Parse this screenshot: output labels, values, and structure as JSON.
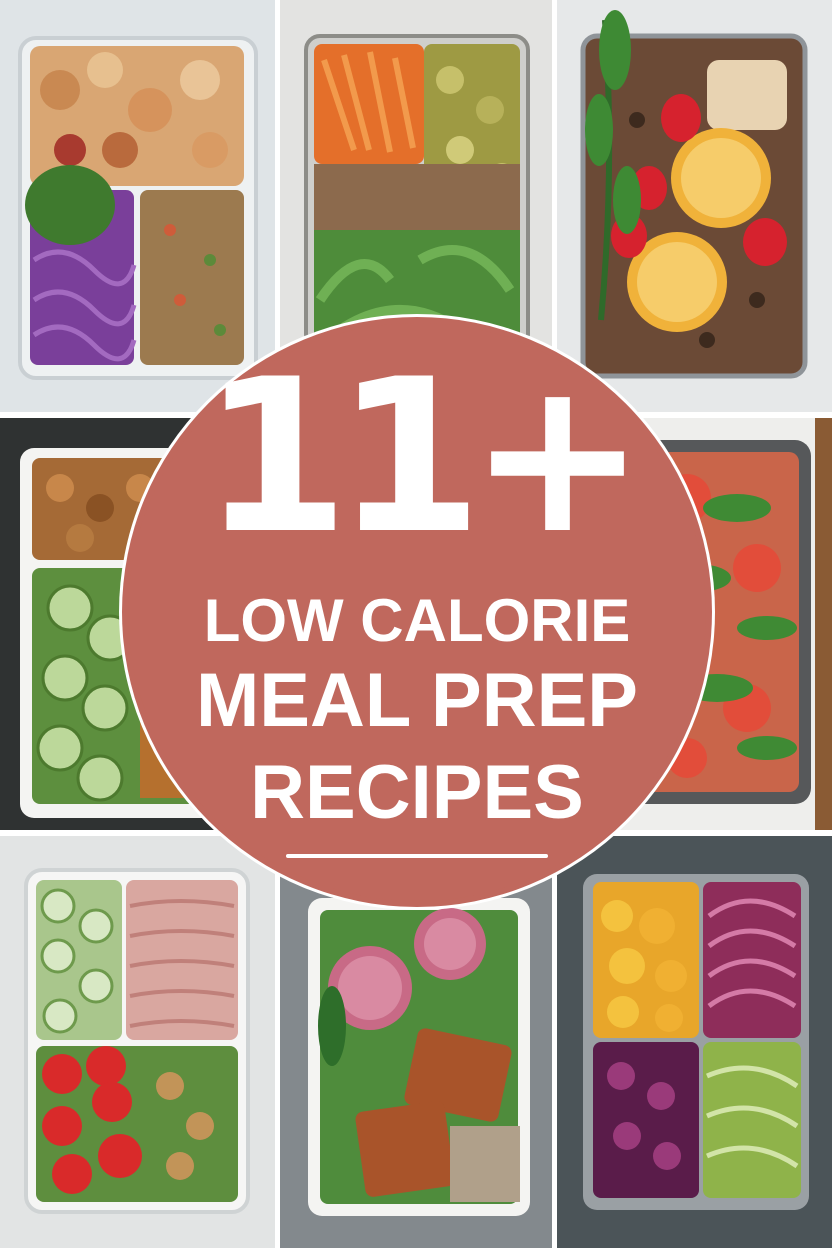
{
  "graphic": {
    "headline_number": "11+",
    "line1": "LOW CALORIE",
    "line2": "MEAL PREP",
    "line3": "RECIPES",
    "badge_color": "#c0685d",
    "text_color": "#ffffff"
  },
  "photos": [
    "chicken-greens-cabbage-grain-box",
    "carrot-olive-quinoa-greens-box",
    "strawberry-orange-chicken-basil-box",
    "chickpea-cucumber-box",
    "tomato-basil-salad-box",
    "cucumber-shredded-meat-tomato-box",
    "meatball-crusted-fish-greens-box",
    "yellow-pepper-onion-beet-slaw-box"
  ]
}
